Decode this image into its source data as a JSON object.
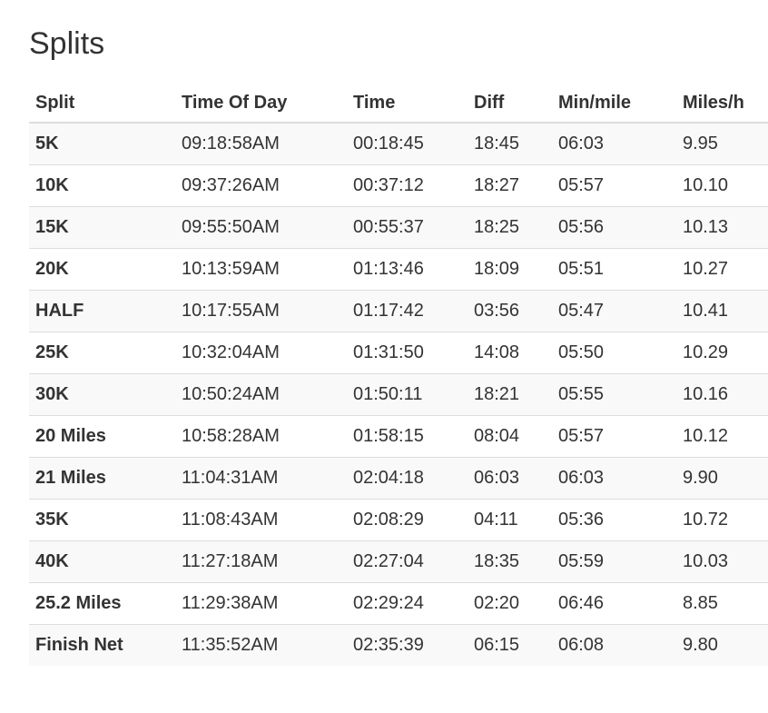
{
  "page": {
    "title": "Splits"
  },
  "table": {
    "headers": [
      "Split",
      "Time Of Day",
      "Time",
      "Diff",
      "Min/mile",
      "Miles/h"
    ],
    "rows": [
      [
        "5K",
        "09:18:58AM",
        "00:18:45",
        "18:45",
        "06:03",
        "9.95"
      ],
      [
        "10K",
        "09:37:26AM",
        "00:37:12",
        "18:27",
        "05:57",
        "10.10"
      ],
      [
        "15K",
        "09:55:50AM",
        "00:55:37",
        "18:25",
        "05:56",
        "10.13"
      ],
      [
        "20K",
        "10:13:59AM",
        "01:13:46",
        "18:09",
        "05:51",
        "10.27"
      ],
      [
        "HALF",
        "10:17:55AM",
        "01:17:42",
        "03:56",
        "05:47",
        "10.41"
      ],
      [
        "25K",
        "10:32:04AM",
        "01:31:50",
        "14:08",
        "05:50",
        "10.29"
      ],
      [
        "30K",
        "10:50:24AM",
        "01:50:11",
        "18:21",
        "05:55",
        "10.16"
      ],
      [
        "20 Miles",
        "10:58:28AM",
        "01:58:15",
        "08:04",
        "05:57",
        "10.12"
      ],
      [
        "21 Miles",
        "11:04:31AM",
        "02:04:18",
        "06:03",
        "06:03",
        "9.90"
      ],
      [
        "35K",
        "11:08:43AM",
        "02:08:29",
        "04:11",
        "05:36",
        "10.72"
      ],
      [
        "40K",
        "11:27:18AM",
        "02:27:04",
        "18:35",
        "05:59",
        "10.03"
      ],
      [
        "25.2 Miles",
        "11:29:38AM",
        "02:29:24",
        "02:20",
        "06:46",
        "8.85"
      ],
      [
        "Finish Net",
        "11:35:52AM",
        "02:35:39",
        "06:15",
        "06:08",
        "9.80"
      ]
    ]
  }
}
